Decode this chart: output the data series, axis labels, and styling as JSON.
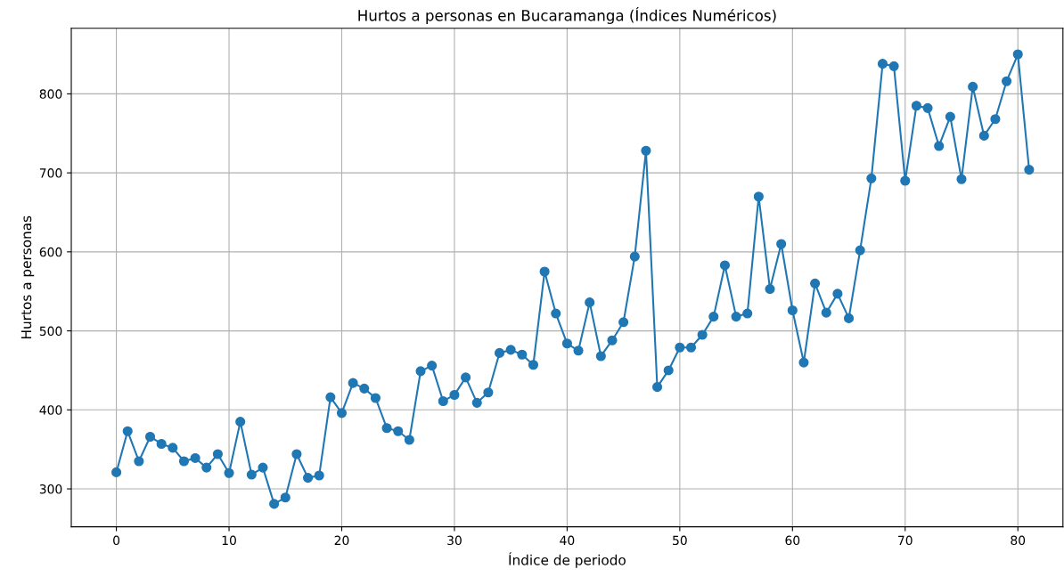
{
  "chart_data": {
    "type": "line",
    "title": "Hurtos a personas en Bucaramanga (Índices Numéricos)",
    "xlabel": "Índice de periodo",
    "ylabel": "Hurtos a personas",
    "x": [
      0,
      1,
      2,
      3,
      4,
      5,
      6,
      7,
      8,
      9,
      10,
      11,
      12,
      13,
      14,
      15,
      16,
      17,
      18,
      19,
      20,
      21,
      22,
      23,
      24,
      25,
      26,
      27,
      28,
      29,
      30,
      31,
      32,
      33,
      34,
      35,
      36,
      37,
      38,
      39,
      40,
      41,
      42,
      43,
      44,
      45,
      46,
      47,
      48,
      49,
      50,
      51,
      52,
      53,
      54,
      55,
      56,
      57,
      58,
      59,
      60,
      61,
      62,
      63,
      64,
      65,
      66,
      67,
      68,
      69,
      70,
      71,
      72,
      73,
      74,
      75,
      76,
      77,
      78,
      79,
      80,
      81
    ],
    "series": [
      {
        "color": "#1f77b4",
        "values": [
          321,
          373,
          335,
          366,
          357,
          352,
          335,
          339,
          327,
          344,
          320,
          385,
          318,
          327,
          281,
          289,
          344,
          314,
          317,
          416,
          396,
          434,
          427,
          415,
          377,
          373,
          362,
          449,
          456,
          411,
          419,
          441,
          409,
          422,
          472,
          476,
          470,
          457,
          575,
          522,
          484,
          475,
          536,
          468,
          488,
          511,
          594,
          728,
          429,
          450,
          479,
          479,
          495,
          518,
          583,
          518,
          522,
          670,
          553,
          610,
          526,
          460,
          560,
          523,
          547,
          516,
          602,
          693,
          838,
          835,
          690,
          785,
          782,
          734,
          771,
          692,
          809,
          747,
          768,
          816,
          850,
          704
        ]
      }
    ],
    "xlim": [
      -4,
      84
    ],
    "ylim": [
      252,
      883
    ],
    "xticks": [
      0,
      10,
      20,
      30,
      40,
      50,
      60,
      70,
      80
    ],
    "yticks": [
      300,
      400,
      500,
      600,
      700,
      800
    ],
    "grid": true,
    "marker": "circle",
    "line_style": "solid"
  }
}
